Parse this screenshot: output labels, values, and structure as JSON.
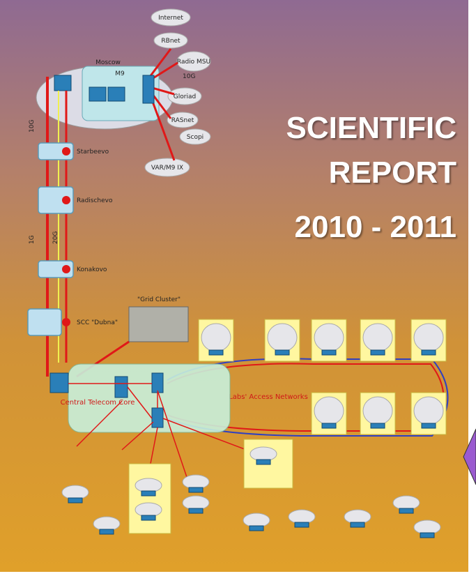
{
  "cover": {
    "title": [
      "SCIENTIFIC",
      "REPORT",
      "2010 - 2011"
    ],
    "clouds": [
      "Internet",
      "RBnet",
      "Radio MSU",
      "Gloriad",
      "RASnet",
      "Scopi",
      "VAR/M9 IX"
    ],
    "moscow": {
      "label": "Moscow",
      "site": "M9"
    },
    "chain": [
      "Starbeevo",
      "Radischevo",
      "Konakovo",
      "SCC \"Dubna\""
    ],
    "link_labels": [
      "10G",
      "10G",
      "1G",
      "20G"
    ],
    "grid_cluster": "\"Grid Cluster\"",
    "core": "Central Telecom Core",
    "labs": "Labs' Access Networks"
  }
}
